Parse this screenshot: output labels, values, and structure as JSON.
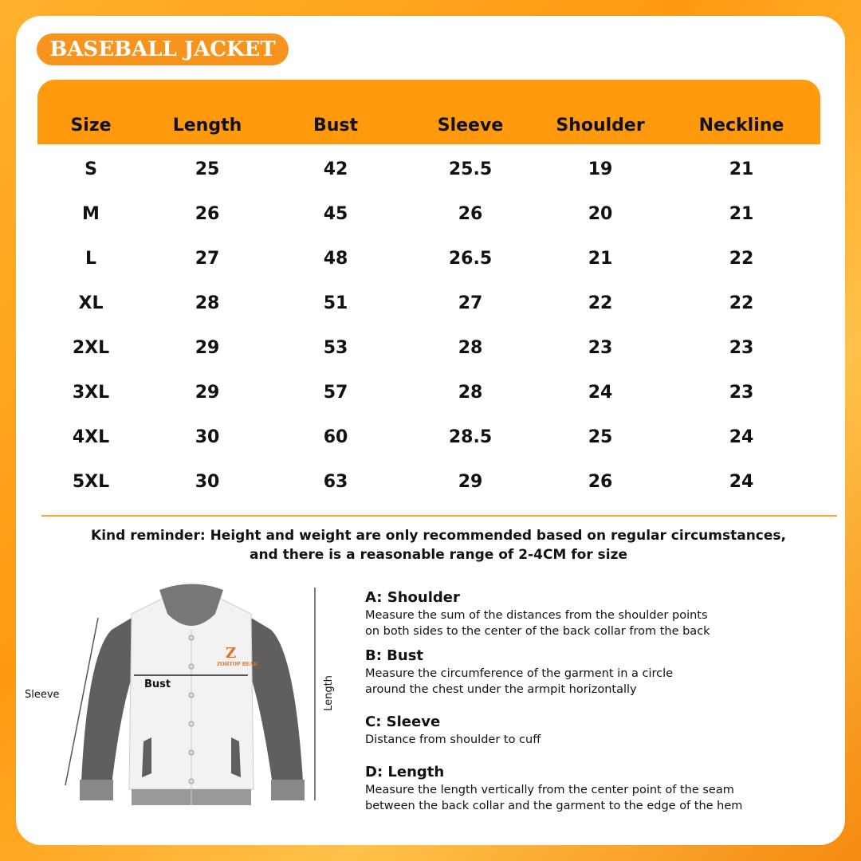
{
  "title": "BASEBALL JACKET",
  "table": {
    "headers": [
      "Size",
      "Length",
      "Bust",
      "Sleeve",
      "Shoulder",
      "Neckline"
    ],
    "rows": [
      [
        "S",
        "25",
        "42",
        "25.5",
        "19",
        "21"
      ],
      [
        "M",
        "26",
        "45",
        "26",
        "20",
        "21"
      ],
      [
        "L",
        "27",
        "48",
        "26.5",
        "21",
        "22"
      ],
      [
        "XL",
        "28",
        "51",
        "27",
        "22",
        "22"
      ],
      [
        "2XL",
        "29",
        "53",
        "28",
        "23",
        "23"
      ],
      [
        "3XL",
        "29",
        "57",
        "28",
        "24",
        "23"
      ],
      [
        "4XL",
        "30",
        "60",
        "28.5",
        "25",
        "24"
      ],
      [
        "5XL",
        "30",
        "63",
        "29",
        "26",
        "24"
      ]
    ]
  },
  "reminder": [
    "Kind reminder: Height and weight are only recommended based on regular circumstances,",
    "and there is a reasonable range of 2-4CM for size"
  ],
  "diagram": {
    "sleeve_label": "Sleeve",
    "bust_label": "Bust",
    "length_label": "Length",
    "logo_text": "ZOHTOP BEAR"
  },
  "measures": [
    {
      "title": "A: Shoulder",
      "lines": [
        "Measure the sum of the distances from the shoulder points",
        "on both sides to the center of the back collar from the back"
      ]
    },
    {
      "title": "B: Bust",
      "lines": [
        "Measure the circumference of the garment in a circle",
        "around the chest under the armpit horizontally"
      ]
    },
    {
      "title": "C: Sleeve",
      "lines": [
        "Distance from shoulder to cuff"
      ]
    },
    {
      "title": "D: Length",
      "lines": [
        "Measure the length vertically from the center point of the seam",
        "between the back collar and the garment to the edge of the hem"
      ]
    }
  ],
  "colors": {
    "accent": "#ff9a0f",
    "sleeve": "#5f5f5f"
  }
}
